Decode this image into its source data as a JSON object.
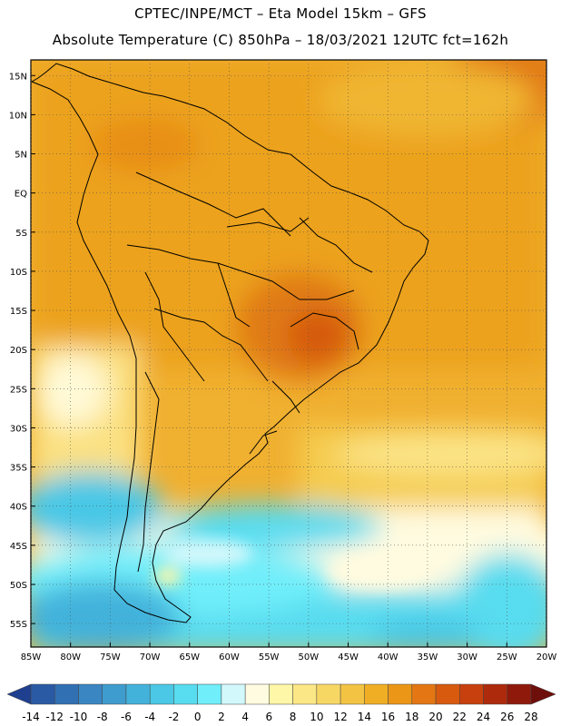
{
  "header": {
    "line1": "CPTEC/INPE/MCT –  Eta Model 15km – GFS",
    "line2": "Absolute Temperature (C) 850hPa – 18/03/2021 12UTC fct=162h"
  },
  "map": {
    "lon_ticks": [
      "85W",
      "80W",
      "75W",
      "70W",
      "65W",
      "60W",
      "55W",
      "50W",
      "45W",
      "40W",
      "35W",
      "30W",
      "25W",
      "20W"
    ],
    "lat_ticks": [
      "15N",
      "10N",
      "5N",
      "EQ",
      "5S",
      "10S",
      "15S",
      "20S",
      "25S",
      "30S",
      "35S",
      "40S",
      "45S",
      "50S",
      "55S"
    ],
    "lon_range": [
      -85,
      -20
    ],
    "lat_range": [
      -58,
      17
    ]
  },
  "colorbar": {
    "levels": [
      "-14",
      "-12",
      "-10",
      "-8",
      "-6",
      "-4",
      "-2",
      "0",
      "2",
      "4",
      "6",
      "8",
      "10",
      "12",
      "14",
      "16",
      "18",
      "20",
      "22",
      "24",
      "26",
      "28"
    ],
    "colors": [
      "#1f3f8f",
      "#2a5aa3",
      "#3170b3",
      "#3a86c2",
      "#3f9ccf",
      "#43b2db",
      "#4ac8e6",
      "#58dcef",
      "#70eefa",
      "#d2f8fb",
      "#fffbe0",
      "#fff7a8",
      "#fbe785",
      "#f7d764",
      "#f3c443",
      "#efae24",
      "#eb9617",
      "#e47713",
      "#d75a0f",
      "#c7400d",
      "#ad2a0c",
      "#8f1a0c",
      "#6e0f0b"
    ]
  }
}
